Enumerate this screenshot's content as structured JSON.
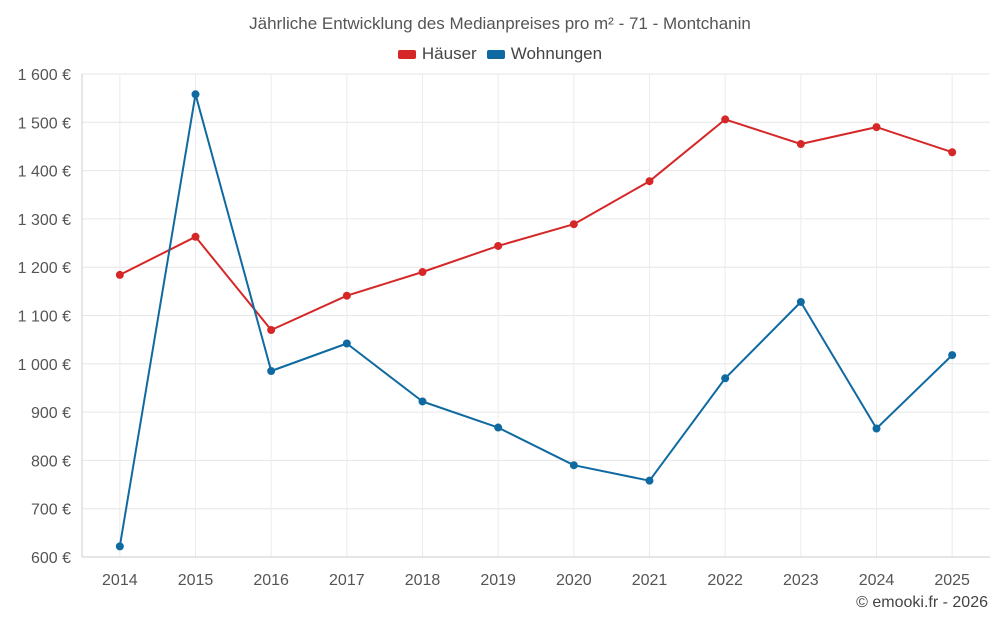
{
  "chart_data": {
    "type": "line",
    "title": "Jährliche Entwicklung des Medianpreises pro m² - 71 - Montchanin",
    "categories": [
      "2014",
      "2015",
      "2016",
      "2017",
      "2018",
      "2019",
      "2020",
      "2021",
      "2022",
      "2023",
      "2024",
      "2025"
    ],
    "ylim": [
      600,
      1600
    ],
    "yticks": [
      600,
      700,
      800,
      900,
      1000,
      1100,
      1200,
      1300,
      1400,
      1500,
      1600
    ],
    "ytick_labels": [
      "600 €",
      "700 €",
      "800 €",
      "900 €",
      "1 000 €",
      "1 100 €",
      "1 200 €",
      "1 300 €",
      "1 400 €",
      "1 500 €",
      "1 600 €"
    ],
    "grid": true,
    "legend_position": "top-center",
    "series": [
      {
        "name": "Häuser",
        "color": "#d62728",
        "values": [
          1184,
          1263,
          1070,
          1141,
          1190,
          1244,
          1289,
          1378,
          1506,
          1455,
          1490,
          1438
        ]
      },
      {
        "name": "Wohnungen",
        "color": "#0f6aa1",
        "values": [
          622,
          1558,
          985,
          1042,
          922,
          868,
          790,
          758,
          970,
          1128,
          866,
          1018
        ]
      }
    ]
  },
  "credit": "© emooki.fr - 2026"
}
